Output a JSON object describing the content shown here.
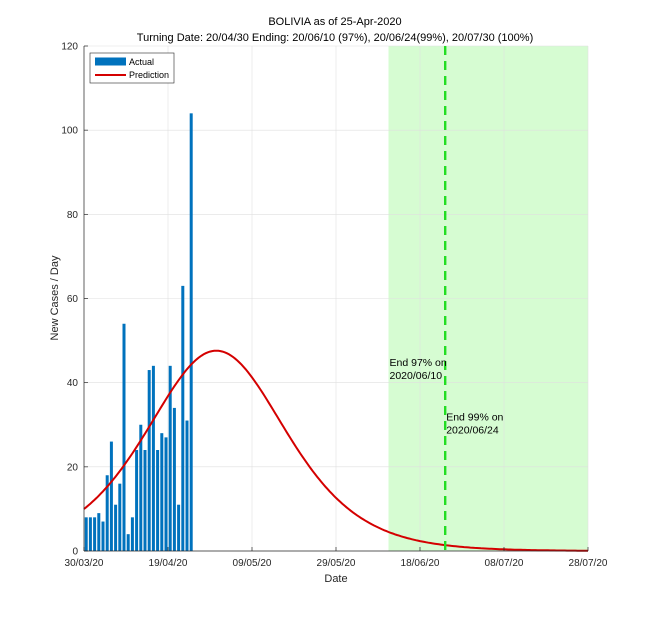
{
  "chart_data": {
    "type": "bar",
    "title": "BOLIVIA as of 25-Apr-2020",
    "subtitle": "Turning Date: 20/04/30  Ending: 20/06/10 (97%), 20/06/24(99%), 20/07/30 (100%)",
    "xlabel": "Date",
    "ylabel": "New Cases / Day",
    "ylim": [
      0,
      120
    ],
    "yticks": [
      0,
      20,
      40,
      60,
      80,
      100,
      120
    ],
    "xlim_days": [
      0,
      120
    ],
    "x_start_date": "30/03/20",
    "xticks": [
      {
        "day": 0,
        "label": "30/03/20"
      },
      {
        "day": 20,
        "label": "19/04/20"
      },
      {
        "day": 40,
        "label": "09/05/20"
      },
      {
        "day": 60,
        "label": "29/05/20"
      },
      {
        "day": 80,
        "label": "18/06/20"
      },
      {
        "day": 100,
        "label": "08/07/20"
      },
      {
        "day": 120,
        "label": "28/07/20"
      }
    ],
    "grid": true,
    "legend": {
      "position": "top-left",
      "entries": [
        "Actual",
        "Prediction"
      ]
    },
    "series": [
      {
        "name": "Actual",
        "kind": "bar",
        "color": "#0072BD",
        "start_day": 0,
        "values": [
          8,
          8,
          8,
          9,
          7,
          18,
          26,
          11,
          16,
          54,
          4,
          8,
          24,
          30,
          24,
          43,
          44,
          24,
          28,
          27,
          44,
          34,
          11,
          63,
          31,
          104
        ]
      },
      {
        "name": "Prediction",
        "kind": "line",
        "color": "#D40000",
        "model": "logistic-derivative",
        "peak_value": 47.6,
        "peak_day": 31.5,
        "rate": 0.09
      }
    ],
    "shaded_region": {
      "from_day": 72.5,
      "to_day": 120,
      "color": "#d6fcd2"
    },
    "vertical_line": {
      "day": 86,
      "style": "dashed",
      "color": "#22dd22"
    },
    "annotations": [
      {
        "lines": [
          "End 97% on",
          "2020/06/10"
        ],
        "day": 72.5,
        "value": 44
      },
      {
        "lines": [
          "End 99% on",
          "2020/06/24"
        ],
        "day": 86,
        "value": 31
      }
    ]
  }
}
